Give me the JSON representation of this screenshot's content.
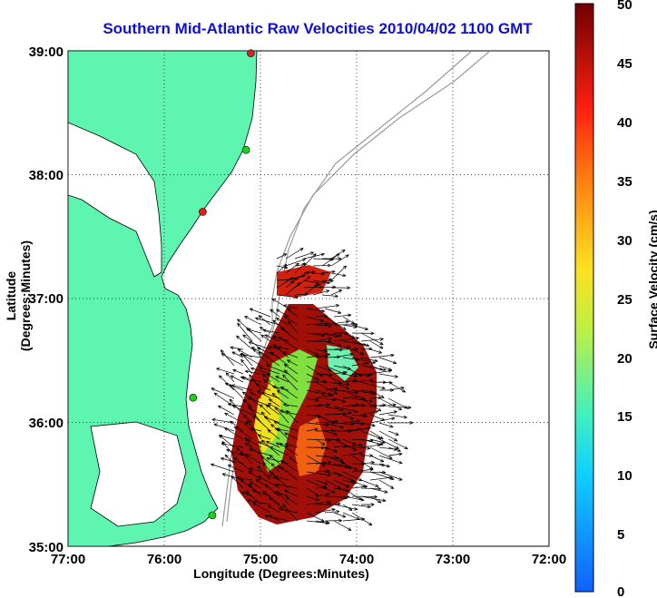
{
  "title": "Southern Mid-Atlantic Raw Velocities 2010/04/02 1100 GMT",
  "xlabel": "Longitude (Degrees:Minutes)",
  "ylabel": "Latitude (Degrees:Minutes)",
  "colorbar": {
    "label": "Surface Velocity (cm/s)",
    "ticks": [
      "0",
      "5",
      "10",
      "15",
      "20",
      "25",
      "30",
      "35",
      "40",
      "45",
      "50"
    ],
    "range": [
      0,
      50
    ]
  },
  "axes": {
    "xticks": [
      "77:00",
      "76:00",
      "75:00",
      "74:00",
      "73:00",
      "72:00"
    ],
    "yticks": [
      "39:00",
      "38:00",
      "37:00",
      "36:00",
      "35:00"
    ],
    "xlim": [
      -77,
      -72
    ],
    "ylim": [
      35,
      39
    ],
    "grid": true
  },
  "colors": {
    "land": "#5ef5b0",
    "title": "#1010d0",
    "coast": "#000000",
    "bathymetry": "#9a9a9a"
  },
  "stations": [
    {
      "lon": -75.1,
      "lat": 38.98,
      "color": "#e02020"
    },
    {
      "lon": -75.15,
      "lat": 38.2,
      "color": "#20d020"
    },
    {
      "lon": -75.6,
      "lat": 37.7,
      "color": "#e02020"
    },
    {
      "lon": -75.7,
      "lat": 36.2,
      "color": "#20d020"
    },
    {
      "lon": -75.5,
      "lat": 35.25,
      "color": "#20d020"
    }
  ]
}
